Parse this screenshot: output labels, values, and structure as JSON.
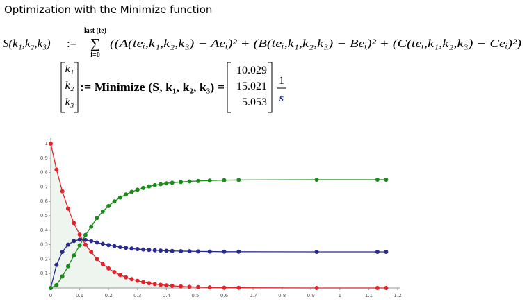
{
  "heading": "Optimization with the Minimize function",
  "definition": {
    "lhs": "S(k₁,k₂,k₃)",
    "assign": ":=",
    "sum_top": "last (te)",
    "sum_symbol": "∑",
    "sum_bottom": "i=0",
    "body": "((A(teᵢ,k₁,k₂,k₃) − Aeᵢ)² + (B(teᵢ,k₁,k₂,k₃) − Beᵢ)² + (C(teᵢ,k₁,k₂,k₃) − Ceᵢ)²)"
  },
  "minimize": {
    "vector": [
      "k₁",
      "k₂",
      "k₃"
    ],
    "call": ":= Minimize (S, k₁, k₂, k₃) =",
    "results": [
      "10.029",
      "15.021",
      "5.053"
    ],
    "unit_num": "1",
    "unit_den": "s"
  },
  "chart_data": {
    "type": "line",
    "x": [
      0,
      0.02,
      0.04,
      0.06,
      0.08,
      0.1,
      0.12,
      0.14,
      0.16,
      0.18,
      0.2,
      0.22,
      0.24,
      0.26,
      0.28,
      0.3,
      0.32,
      0.34,
      0.36,
      0.38,
      0.4,
      0.42,
      0.45,
      0.48,
      0.51,
      0.55,
      0.6,
      0.65,
      0.92,
      1.13,
      1.16
    ],
    "series": [
      {
        "color": "#e3232c",
        "values": [
          1,
          0.82,
          0.67,
          0.55,
          0.45,
          0.37,
          0.3,
          0.25,
          0.2,
          0.165,
          0.135,
          0.11,
          0.09,
          0.074,
          0.061,
          0.05,
          0.041,
          0.033,
          0.027,
          0.022,
          0.018,
          0.015,
          0.011,
          0.008,
          0.006,
          0.004,
          0.002,
          0.0015,
          0,
          0,
          0
        ]
      },
      {
        "color": "#2a2a8c",
        "values": [
          0,
          0.16,
          0.25,
          0.3,
          0.325,
          0.335,
          0.333,
          0.325,
          0.315,
          0.305,
          0.297,
          0.29,
          0.283,
          0.278,
          0.273,
          0.269,
          0.266,
          0.263,
          0.261,
          0.259,
          0.257,
          0.256,
          0.255,
          0.254,
          0.253,
          0.252,
          0.251,
          0.251,
          0.25,
          0.25,
          0.25
        ]
      },
      {
        "color": "#1b8a1b",
        "values": [
          0,
          0.02,
          0.08,
          0.15,
          0.225,
          0.295,
          0.367,
          0.425,
          0.485,
          0.53,
          0.568,
          0.6,
          0.627,
          0.648,
          0.666,
          0.681,
          0.693,
          0.704,
          0.712,
          0.719,
          0.725,
          0.729,
          0.734,
          0.738,
          0.741,
          0.744,
          0.747,
          0.748,
          0.75,
          0.75,
          0.75
        ]
      }
    ],
    "area_color": "#eef5ee",
    "xlim": [
      0,
      1.2
    ],
    "xticks": [
      0,
      0.1,
      0.2,
      0.3,
      0.4,
      0.5,
      0.6,
      0.7,
      0.8,
      0.9,
      1,
      1.1,
      1.2
    ],
    "ylim": [
      0,
      1
    ],
    "yticks": [
      0.1,
      0.2,
      0.3,
      0.4,
      0.5,
      0.6,
      0.7,
      0.8,
      0.9,
      1
    ]
  }
}
